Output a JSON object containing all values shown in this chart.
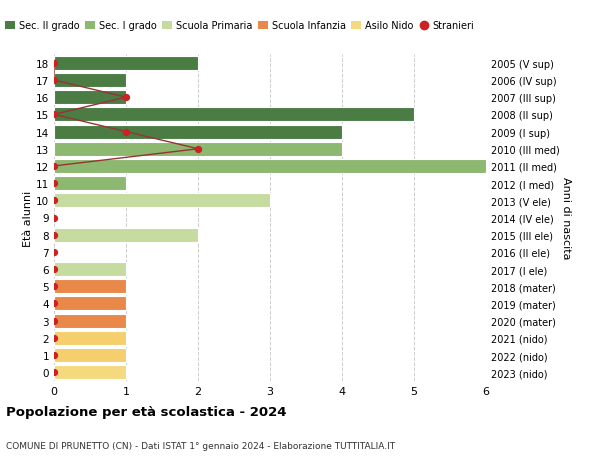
{
  "ages": [
    0,
    1,
    2,
    3,
    4,
    5,
    6,
    7,
    8,
    9,
    10,
    11,
    12,
    13,
    14,
    15,
    16,
    17,
    18
  ],
  "right_labels": [
    "2023 (nido)",
    "2022 (nido)",
    "2021 (nido)",
    "2020 (mater)",
    "2019 (mater)",
    "2018 (mater)",
    "2017 (I ele)",
    "2016 (II ele)",
    "2015 (III ele)",
    "2014 (IV ele)",
    "2013 (V ele)",
    "2012 (I med)",
    "2011 (II med)",
    "2010 (III med)",
    "2009 (I sup)",
    "2008 (II sup)",
    "2007 (III sup)",
    "2006 (IV sup)",
    "2005 (V sup)"
  ],
  "bar_values": [
    1,
    1,
    1,
    1,
    1,
    1,
    1,
    0,
    2,
    0,
    3,
    1,
    6,
    4,
    4,
    5,
    1,
    1,
    2
  ],
  "bar_colors": [
    "#f5d97e",
    "#f5ce6e",
    "#f5ce6e",
    "#e8894a",
    "#e8894a",
    "#e8894a",
    "#c5dba0",
    "#c5dba0",
    "#c5dba0",
    "#c5dba0",
    "#c5dba0",
    "#8cb870",
    "#8cb870",
    "#8cb870",
    "#4a7c44",
    "#4a7c44",
    "#4a7c44",
    "#4a7c44",
    "#4a7c44"
  ],
  "stranieri_values": [
    0,
    0,
    0,
    0,
    0,
    0,
    0,
    0,
    0,
    0,
    0,
    0,
    0,
    2,
    1,
    0,
    1,
    0,
    0
  ],
  "legend_labels": [
    "Sec. II grado",
    "Sec. I grado",
    "Scuola Primaria",
    "Scuola Infanzia",
    "Asilo Nido",
    "Stranieri"
  ],
  "legend_colors": [
    "#4a7c44",
    "#8cb870",
    "#c5dba0",
    "#e8894a",
    "#f5d97e",
    "#cc2222"
  ],
  "title": "Popolazione per età scolastica - 2024",
  "subtitle": "COMUNE DI PRUNETTO (CN) - Dati ISTAT 1° gennaio 2024 - Elaborazione TUTTITALIA.IT",
  "ylabel_left": "Età alunni",
  "ylabel_right": "Anni di nascita",
  "xlim": [
    0,
    6
  ],
  "xticks": [
    0,
    1,
    2,
    3,
    4,
    5,
    6
  ],
  "grid_color": "#cccccc",
  "bar_height": 0.82,
  "stranieri_color": "#cc2222",
  "stranieri_line_color": "#993333",
  "fig_width": 6.0,
  "fig_height": 4.6
}
